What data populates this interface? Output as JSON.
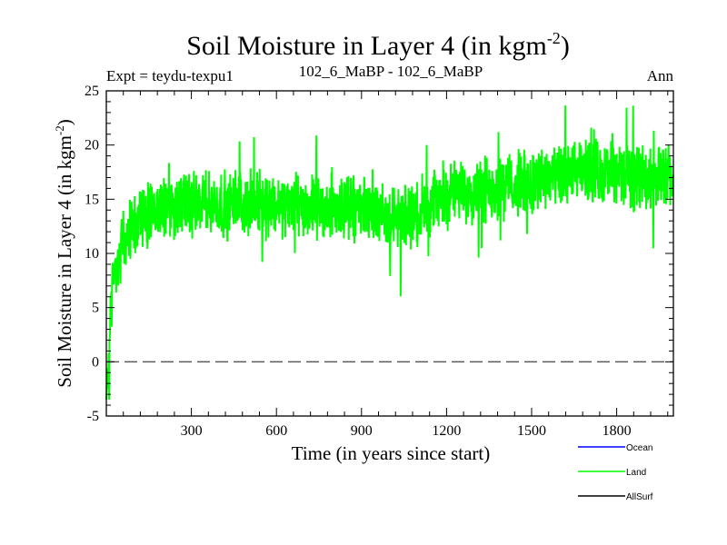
{
  "chart_data": {
    "type": "line",
    "title": "Soil Moisture in Layer 4 (in kgm",
    "title_sup": "-2",
    "title_close": ")",
    "subtitle_left": "Expt = teydu-texpu1",
    "subtitle_center": "102_6_MaBP - 102_6_MaBP",
    "subtitle_right": "Ann",
    "xlabel": "Time (in years since start)",
    "ylabel": "Soil Moisture in Layer 4 (in kgm",
    "ylabel_sup": "-2",
    "ylabel_close": ")",
    "xlim": [
      0,
      2000
    ],
    "ylim": [
      -5,
      25
    ],
    "xticks": [
      300,
      600,
      900,
      1200,
      1500,
      1800
    ],
    "yticks": [
      -5,
      0,
      5,
      10,
      15,
      20,
      25
    ],
    "reference_line": 0,
    "series": [
      {
        "name": "Ocean",
        "color": "#0000ff",
        "values": []
      },
      {
        "name": "Land",
        "color": "#00ff00",
        "trend": [
          [
            0,
            -3
          ],
          [
            8,
            0
          ],
          [
            20,
            8
          ],
          [
            60,
            11
          ],
          [
            120,
            13.5
          ],
          [
            300,
            14.5
          ],
          [
            600,
            14.5
          ],
          [
            900,
            14.2
          ],
          [
            1050,
            13
          ],
          [
            1100,
            14
          ],
          [
            1200,
            15.5
          ],
          [
            1500,
            16.5
          ],
          [
            1700,
            17.5
          ],
          [
            2000,
            17
          ]
        ],
        "noise_amplitude": 2.2,
        "spike_min": 6.0,
        "spike_max": 24.7
      },
      {
        "name": "AllSurf",
        "color": "#000000",
        "values": []
      }
    ],
    "legend": [
      "Ocean",
      "Land",
      "AllSurf"
    ]
  }
}
